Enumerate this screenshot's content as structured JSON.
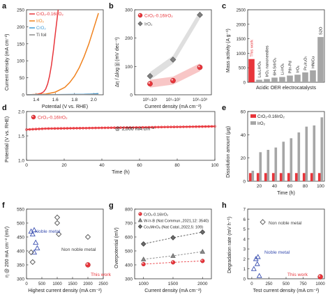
{
  "panels": {
    "a": "a",
    "b": "b",
    "c": "c",
    "d": "d",
    "e": "e",
    "f": "f",
    "g": "g",
    "h": "h"
  },
  "colors": {
    "red": "#e8353b",
    "orange": "#f0821e",
    "blue": "#3d9ad6",
    "gray": "#8c8c8c",
    "pink": "#f7bcbc",
    "lightgray": "#d9d9d9",
    "navy": "#3a4fb0"
  },
  "chart_data": [
    {
      "panel": "a",
      "type": "line",
      "xlabel": "Potential (V vs. RHE)",
      "ylabel": "Current density (mA cm⁻²)",
      "xlim": [
        1.3,
        2.1
      ],
      "ylim": [
        0,
        250
      ],
      "xticks": [
        "1.4",
        "1.6",
        "1.8",
        "2.0"
      ],
      "yticks": [
        "0",
        "50",
        "100",
        "150",
        "200",
        "250"
      ],
      "legend_position": "top-left",
      "series": [
        {
          "name": "CrO₂-0.16IrO₂",
          "x": [
            1.3,
            1.4,
            1.45,
            1.48,
            1.5,
            1.52,
            1.54,
            1.56,
            1.58,
            1.6,
            1.63
          ],
          "y": [
            0,
            1,
            4,
            9,
            17,
            32,
            55,
            88,
            130,
            180,
            250
          ]
        },
        {
          "name": "IrO₂",
          "x": [
            1.3,
            1.5,
            1.6,
            1.7,
            1.75,
            1.8,
            1.85,
            1.9,
            1.95,
            2.0,
            2.05
          ],
          "y": [
            0,
            2,
            8,
            22,
            36,
            55,
            80,
            112,
            150,
            195,
            240
          ]
        },
        {
          "name": "CrO₂",
          "x": [
            1.3,
            1.6,
            1.9,
            2.0,
            2.05
          ],
          "y": [
            0,
            0.5,
            1.5,
            2.5,
            3.5
          ]
        },
        {
          "name": "Ti foil",
          "x": [
            1.3,
            1.6,
            1.9,
            2.05
          ],
          "y": [
            0,
            0.2,
            0.6,
            1
          ]
        }
      ]
    },
    {
      "panel": "b",
      "type": "line",
      "xlabel": "Current density (mA cm⁻²)",
      "ylabel": "Δη / Δlog |j| (mV dec⁻¹)",
      "categories": [
        "10⁰–10¹",
        "10¹–10²",
        "10²–10³"
      ],
      "ylim": [
        0,
        300
      ],
      "yticks": [
        "0",
        "100",
        "200",
        "300"
      ],
      "legend_position": "top-left",
      "series": [
        {
          "name": "CrO₂-0.16IrO₂",
          "values": [
            39,
            50,
            97
          ]
        },
        {
          "name": "IrO₂",
          "values": [
            66,
            124,
            282
          ]
        }
      ]
    },
    {
      "panel": "c",
      "type": "bar",
      "xlabel": "Acidic OER electrocatalysts",
      "ylabel": "Mass activity (A g⁻¹)",
      "ylim": [
        0,
        2500
      ],
      "yticks": [
        "0",
        "500",
        "1000",
        "1500",
        "2000",
        "2500"
      ],
      "categories": [
        "This work",
        "La₂LiIrO₆",
        "IrO₂ nanoneedles",
        "6H-SrIrO₃",
        "Li-IrOₓ",
        "PtIr-Pd",
        "IrOₓ",
        "Pr₂Ir₂O₇",
        "HNiCu",
        "S2O"
      ],
      "values": [
        800,
        85,
        110,
        160,
        180,
        230,
        260,
        340,
        410,
        1560
      ]
    },
    {
      "panel": "d",
      "type": "line",
      "xlabel": "Time (h)",
      "ylabel": "Potential (V vs. RHE)",
      "xlim": [
        0,
        100
      ],
      "ylim": [
        1.0,
        2.0
      ],
      "xticks": [
        "0",
        "20",
        "40",
        "60",
        "80",
        "100"
      ],
      "yticks": [
        "1.0",
        "1.5",
        "2.0"
      ],
      "annotation": "@ 1,000 mA cm⁻²",
      "series": [
        {
          "name": "CrO₂-0.16IrO₂",
          "x": [
            0,
            10,
            20,
            30,
            40,
            50,
            60,
            70,
            80,
            90,
            100
          ],
          "y": [
            1.63,
            1.65,
            1.655,
            1.66,
            1.665,
            1.67,
            1.675,
            1.68,
            1.685,
            1.69,
            1.695
          ]
        }
      ]
    },
    {
      "panel": "e",
      "type": "bar",
      "xlabel": "Time (h)",
      "ylabel": "Dissolution amount (μg)",
      "ylim": [
        0,
        60
      ],
      "yticks": [
        "0",
        "20",
        "40",
        "60"
      ],
      "xticks": [
        "20",
        "40",
        "60",
        "80",
        "100"
      ],
      "categories": [
        "10",
        "20",
        "30",
        "40",
        "50",
        "60",
        "70",
        "80",
        "90",
        "100"
      ],
      "legend_position": "top-left",
      "series": [
        {
          "name": "CrO₂-0.16IrO₂",
          "values": [
            7,
            7,
            7,
            7,
            7,
            7,
            7,
            7,
            7,
            7
          ]
        },
        {
          "name": "IrO₂",
          "values": [
            9,
            25,
            27,
            29,
            34,
            37,
            42,
            47,
            48,
            55
          ]
        }
      ]
    },
    {
      "panel": "f",
      "type": "scatter",
      "xlabel": "Highest current density (mA cm⁻²)",
      "ylabel": "η @ 200 mA cm⁻² (mV)",
      "xlim": [
        0,
        2500
      ],
      "ylim": [
        300,
        550
      ],
      "xticks": [
        "0",
        "500",
        "1000",
        "1500",
        "2000",
        "2500"
      ],
      "yticks": [
        "300",
        "350",
        "400",
        "450",
        "500",
        "550"
      ],
      "annotations": [
        "Noble metal",
        "Non noble metal",
        "This work"
      ],
      "series": [
        {
          "name": "Noble metal",
          "x": [
            150,
            200,
            250,
            300,
            350,
            250
          ],
          "y": [
            470,
            460,
            475,
            430,
            410,
            395
          ]
        },
        {
          "name": "Non noble metal",
          "x": [
            150,
            200,
            1000,
            1000,
            1050,
            2000
          ],
          "y": [
            395,
            360,
            520,
            500,
            460,
            450
          ]
        },
        {
          "name": "This work",
          "x": [
            2000
          ],
          "y": [
            350
          ]
        }
      ]
    },
    {
      "panel": "g",
      "type": "line",
      "xlabel": "Current density (mA cm⁻²)",
      "ylabel": "Overpotential (mV)",
      "xlim": [
        850,
        2150
      ],
      "ylim": [
        300,
        800
      ],
      "xticks": [
        "1000",
        "1500",
        "2000"
      ],
      "yticks": [
        "300",
        "400",
        "500",
        "600",
        "700",
        "800"
      ],
      "legend_position": "top-left",
      "series": [
        {
          "name": "CrO₂-0.16IrO₂",
          "x": [
            1000,
            1500,
            2000
          ],
          "y": [
            405,
            418,
            428
          ]
        },
        {
          "name": "W-Ir-B (Nat Commun.,2021,12: 3540)",
          "x": [
            1000,
            1500,
            2000
          ],
          "y": [
            440,
            465,
            495
          ]
        },
        {
          "name": "Co₃MnO₈ (Nat Catal.,2022,5: 109)",
          "x": [
            1000,
            1500,
            2000
          ],
          "y": [
            550,
            595,
            635
          ]
        }
      ]
    },
    {
      "panel": "h",
      "type": "scatter",
      "xlabel": "Test current density (mA cm⁻²)",
      "ylabel": "Degradation rate (mV h⁻¹)",
      "xlim": [
        0,
        1000
      ],
      "ylim": [
        0,
        7
      ],
      "xticks": [
        "0",
        "250",
        "500",
        "750",
        "1000"
      ],
      "yticks": [
        "0",
        "1",
        "2",
        "3",
        "4",
        "5",
        "6",
        "7"
      ],
      "annotations": [
        "Non noble metal",
        "Noble metal",
        "This work"
      ],
      "series": [
        {
          "name": "Noble metal",
          "x": [
            30,
            60,
            80,
            90,
            110
          ],
          "y": [
            1.0,
            2.0,
            1.5,
            2.2,
            0.3
          ]
        },
        {
          "name": "Non noble metal",
          "x": [
            160
          ],
          "y": [
            5.7
          ]
        },
        {
          "name": "This work",
          "x": [
            1000
          ],
          "y": [
            0.2
          ]
        }
      ]
    }
  ]
}
